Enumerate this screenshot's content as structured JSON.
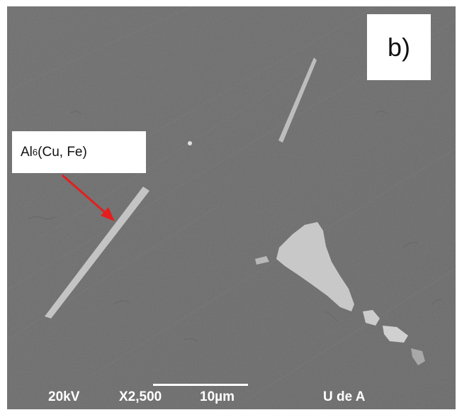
{
  "panel_label": "b)",
  "callout": {
    "main": "Al",
    "subscript": "6",
    "rest": "(Cu, Fe)",
    "arrow_color": "#e41e1e"
  },
  "databar": {
    "voltage": "20kV",
    "magnification": "X2,500",
    "scale": "10µm",
    "facility": "U de A"
  },
  "colors": {
    "background": "#707070",
    "particles": "#c8c8c8",
    "text": "#ffffff"
  }
}
